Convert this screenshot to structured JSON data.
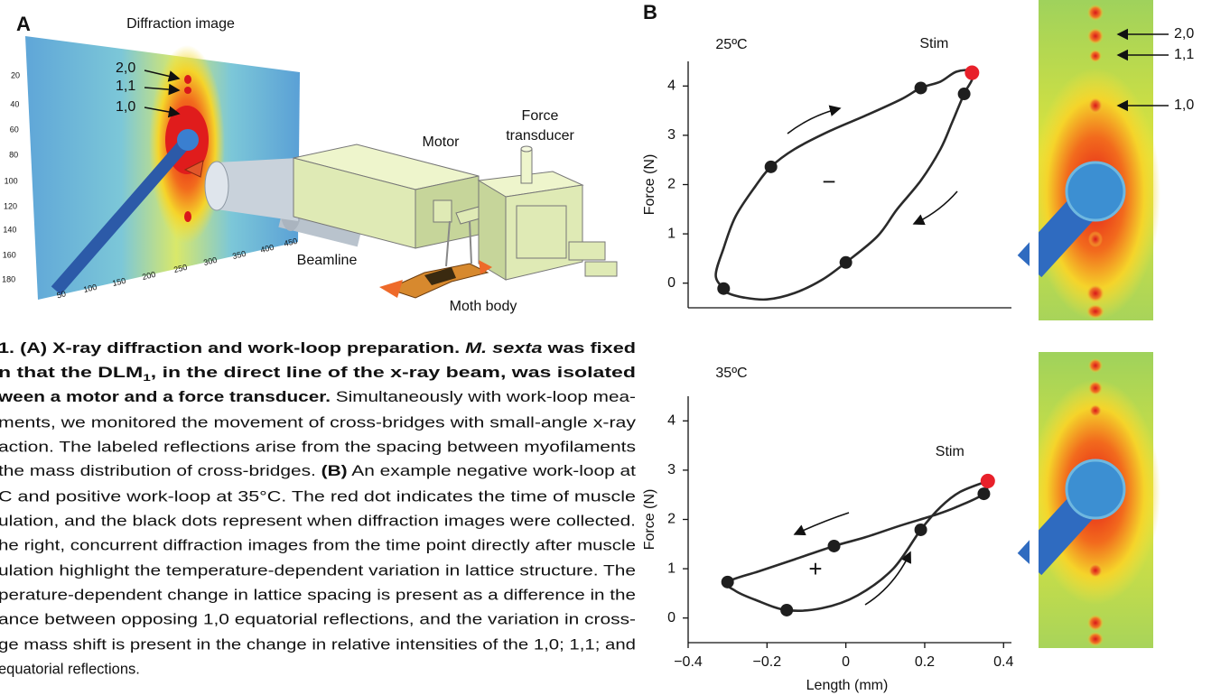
{
  "panel_a": {
    "label": "A",
    "title": "Diffraction image",
    "reflections": [
      "2,0",
      "1,1",
      "1,0"
    ],
    "yticks": [
      20,
      40,
      60,
      80,
      100,
      120,
      140,
      160,
      180
    ],
    "xticks": [
      50,
      100,
      150,
      200,
      250,
      300,
      350,
      400,
      450
    ],
    "motor": "Motor",
    "force_transducer": [
      "Force",
      "transducer"
    ],
    "beamline": "Beamline",
    "moth_body": "Moth body"
  },
  "panel_b": {
    "label": "B",
    "inset_reflections": [
      "2,0",
      "1,1",
      "1,0"
    ]
  },
  "caption": {
    "lines": [
      [
        "1. (A) X-ray diffraction and work-loop preparation. ",
        "M. sexta",
        " was fixed"
      ],
      [
        "n that the DLM",
        "1",
        ", in the direct line of the x-ray beam, was isolated"
      ],
      [
        "ween a motor and a force transducer.",
        " Simultaneously with work-loop mea-"
      ],
      [
        "ments, we monitored the movement of cross-bridges with small-angle x-ray"
      ],
      [
        "action. The labeled reflections arise from the spacing between myofilaments"
      ],
      [
        "the mass distribution of cross-bridges. ",
        "(B)",
        " An example negative work-loop at"
      ],
      [
        "C and positive work-loop at 35°C. The red dot indicates the time of muscle"
      ],
      [
        "ulation, and the black dots represent when diffraction images were collected."
      ],
      [
        "he right, concurrent diffraction images from the time point directly after muscle"
      ],
      [
        "ulation highlight the temperature-dependent variation in lattice structure. The"
      ],
      [
        "perature-dependent change in lattice spacing is present as a difference in the"
      ],
      [
        "ance between opposing 1,0 equatorial reflections, and the variation in cross-"
      ],
      [
        "ge mass shift is present in the change in relative intensities of the 1,0; 1,1; and"
      ],
      [
        "equatorial reflections."
      ]
    ]
  },
  "chart_data": [
    {
      "type": "line",
      "title": "25ºC",
      "ylabel": "Force (N)",
      "color": "#2a2a2a",
      "x": [
        -0.31,
        -0.33,
        -0.31,
        -0.28,
        -0.23,
        -0.19,
        -0.13,
        -0.04,
        0.05,
        0.14,
        0.19,
        0.24,
        0.28,
        0.32,
        0.32,
        0.3,
        0.27,
        0.24,
        0.19,
        0.13,
        0.08,
        0.0,
        -0.06,
        -0.13,
        -0.2,
        -0.26,
        -0.3,
        -0.31
      ],
      "values": [
        -0.11,
        0.16,
        0.71,
        1.35,
        1.96,
        2.36,
        2.72,
        3.09,
        3.4,
        3.73,
        3.96,
        4.09,
        4.29,
        4.31,
        4.13,
        3.84,
        3.27,
        2.72,
        2.08,
        1.5,
        0.95,
        0.42,
        0.07,
        -0.2,
        -0.33,
        -0.29,
        -0.2,
        -0.11
      ],
      "markers": {
        "color": "#1e1e1e",
        "x": [
          -0.31,
          -0.19,
          0.19,
          0.3,
          0.0
        ],
        "y": [
          -0.11,
          2.36,
          3.96,
          3.84,
          0.42
        ]
      },
      "stim": {
        "label": "Stim",
        "color": "#e8202a",
        "x": 0.32,
        "y": 4.27
      },
      "annotation": "−",
      "xlim": [
        -0.4,
        0.42
      ],
      "ylim": [
        -0.5,
        4.5
      ],
      "yticks": [
        0,
        1,
        2,
        3,
        4
      ]
    },
    {
      "type": "line",
      "title": "35ºC",
      "ylabel": "Force (N)",
      "xlabel": "Length (mm)",
      "color": "#2a2a2a",
      "x": [
        0.36,
        0.35,
        0.28,
        0.23,
        0.14,
        0.05,
        -0.03,
        -0.13,
        -0.22,
        -0.3,
        -0.28,
        -0.23,
        -0.15,
        -0.06,
        0.03,
        0.12,
        0.19,
        0.24,
        0.29,
        0.36
      ],
      "values": [
        2.78,
        2.52,
        2.25,
        2.1,
        1.88,
        1.64,
        1.46,
        1.19,
        0.95,
        0.73,
        0.55,
        0.37,
        0.16,
        0.2,
        0.46,
        1.0,
        1.79,
        2.25,
        2.56,
        2.78
      ],
      "markers": {
        "color": "#1e1e1e",
        "x": [
          0.35,
          -0.03,
          -0.3,
          -0.15,
          0.19
        ],
        "y": [
          2.52,
          1.46,
          0.73,
          0.16,
          1.79
        ]
      },
      "stim": {
        "label": "Stim",
        "color": "#e8202a",
        "x": 0.36,
        "y": 2.78
      },
      "annotation": "+",
      "xlim": [
        -0.4,
        0.42
      ],
      "ylim": [
        -0.5,
        4.5
      ],
      "yticks": [
        0,
        1,
        2,
        3,
        4
      ],
      "xticks": [
        {
          "value": -0.4,
          "label": "−0.4"
        },
        {
          "value": -0.2,
          "label": "−0.2"
        },
        0,
        0.2,
        0.4
      ]
    }
  ]
}
